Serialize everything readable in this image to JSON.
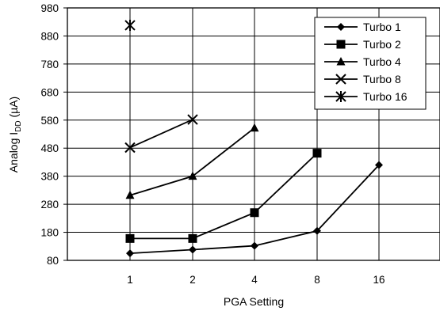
{
  "chart_data": {
    "type": "line",
    "title": "",
    "xlabel": "PGA Setting",
    "ylabel_main": "Analog I",
    "ylabel_sub": "DD",
    "ylabel_unit": " (µA)",
    "categories": [
      "1",
      "2",
      "4",
      "8",
      "16"
    ],
    "ylim": [
      80,
      980
    ],
    "yticks": [
      "80",
      "180",
      "280",
      "380",
      "480",
      "580",
      "680",
      "780",
      "880",
      "980"
    ],
    "grid": true,
    "legend_position": "top-right",
    "series": [
      {
        "name": "Turbo 1",
        "marker": "diamond",
        "values": [
          105,
          118,
          132,
          185,
          420
        ]
      },
      {
        "name": "Turbo 2",
        "marker": "square",
        "values": [
          158,
          158,
          250,
          462,
          null
        ]
      },
      {
        "name": "Turbo 4",
        "marker": "triangle",
        "values": [
          312,
          380,
          552,
          null,
          null
        ]
      },
      {
        "name": "Turbo 8",
        "marker": "x",
        "values": [
          482,
          582,
          null,
          null,
          null
        ]
      },
      {
        "name": "Turbo 16",
        "marker": "asterisk",
        "values": [
          918,
          null,
          null,
          null,
          null
        ]
      }
    ]
  }
}
